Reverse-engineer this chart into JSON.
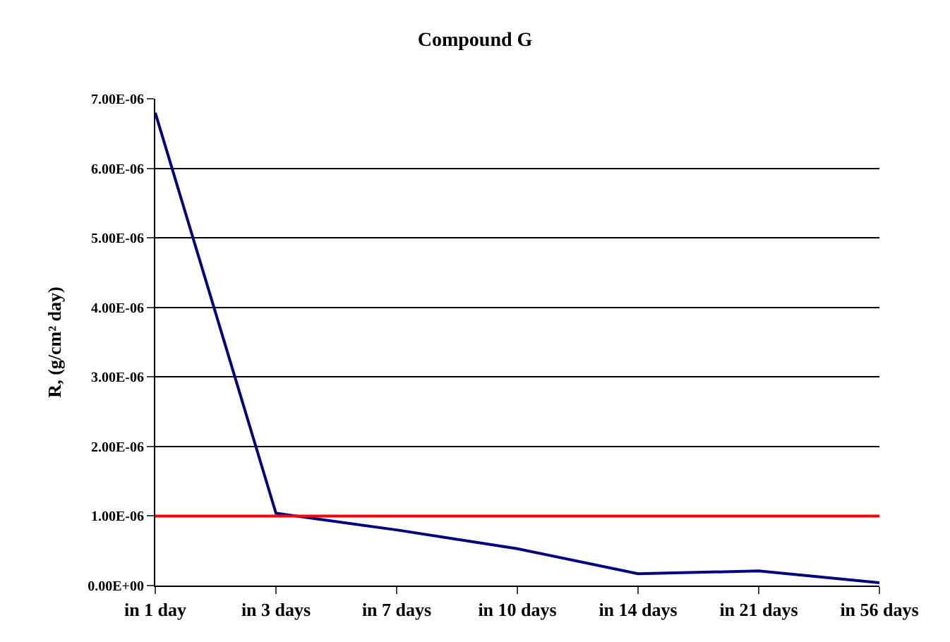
{
  "chart_data": {
    "type": "line",
    "title": "Compound G",
    "ylabel": "R, (g/cm² day)",
    "categories": [
      "in 1 day",
      "in 3 days",
      "in 7 days",
      "in 10 days",
      "in 14 days",
      "in 21 days",
      "in 56 days"
    ],
    "series": [
      {
        "color": "#000080",
        "values": [
          6.8e-06,
          1.04e-06,
          8e-07,
          5.3e-07,
          1.7e-07,
          2.1e-07,
          4e-08
        ]
      }
    ],
    "ylim": [
      0,
      7e-06
    ],
    "yticks": [
      {
        "value": 0,
        "label": "0.00E+00"
      },
      {
        "value": 1e-06,
        "label": "1.00E-06"
      },
      {
        "value": 2e-06,
        "label": "2.00E-06"
      },
      {
        "value": 3e-06,
        "label": "3.00E-06"
      },
      {
        "value": 4e-06,
        "label": "4.00E-06"
      },
      {
        "value": 5e-06,
        "label": "5.00E-06"
      },
      {
        "value": 6e-06,
        "label": "6.00E-06"
      },
      {
        "value": 7e-06,
        "label": "7.00E-06"
      }
    ],
    "ref_lines": [
      {
        "axis": "y",
        "value": 1e-06,
        "color": "#ff0000",
        "line_style": "solid"
      }
    ],
    "grid": "y",
    "legend": false,
    "marker": "none",
    "line_style": "solid"
  }
}
